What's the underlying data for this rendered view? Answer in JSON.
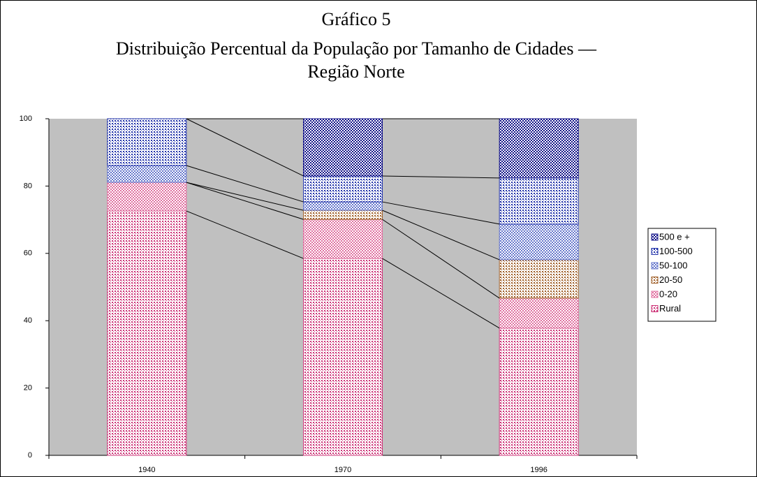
{
  "chart_data": {
    "type": "stacked_bar",
    "title": [
      "Gráfico 5",
      "Distribuição Percentual da População por Tamanho de Cidades —",
      "Região Norte"
    ],
    "categories": [
      "1940",
      "1970",
      "1996"
    ],
    "series": [
      {
        "name": "Rural",
        "color": "#cc3377",
        "values": [
          72.6,
          58.5,
          37.8
        ]
      },
      {
        "name": "0-20",
        "color": "#e070a0",
        "values": [
          8.5,
          11.6,
          8.9
        ]
      },
      {
        "name": "20-50",
        "color": "#a0602a",
        "values": [
          0,
          2.7,
          11.4
        ]
      },
      {
        "name": "50-100",
        "color": "#6677cc",
        "values": [
          5.0,
          2.5,
          10.6
        ]
      },
      {
        "name": "100-500",
        "color": "#2233aa",
        "values": [
          13.9,
          7.7,
          13.7
        ]
      },
      {
        "name": "500 e +",
        "color": "#111188",
        "values": [
          0,
          17.0,
          17.6
        ]
      }
    ],
    "ylim": [
      0,
      100
    ],
    "yticks": [
      0,
      20,
      40,
      60,
      80,
      100
    ],
    "grid": false,
    "legend": "right",
    "plot_background": "#c0c0c0"
  }
}
